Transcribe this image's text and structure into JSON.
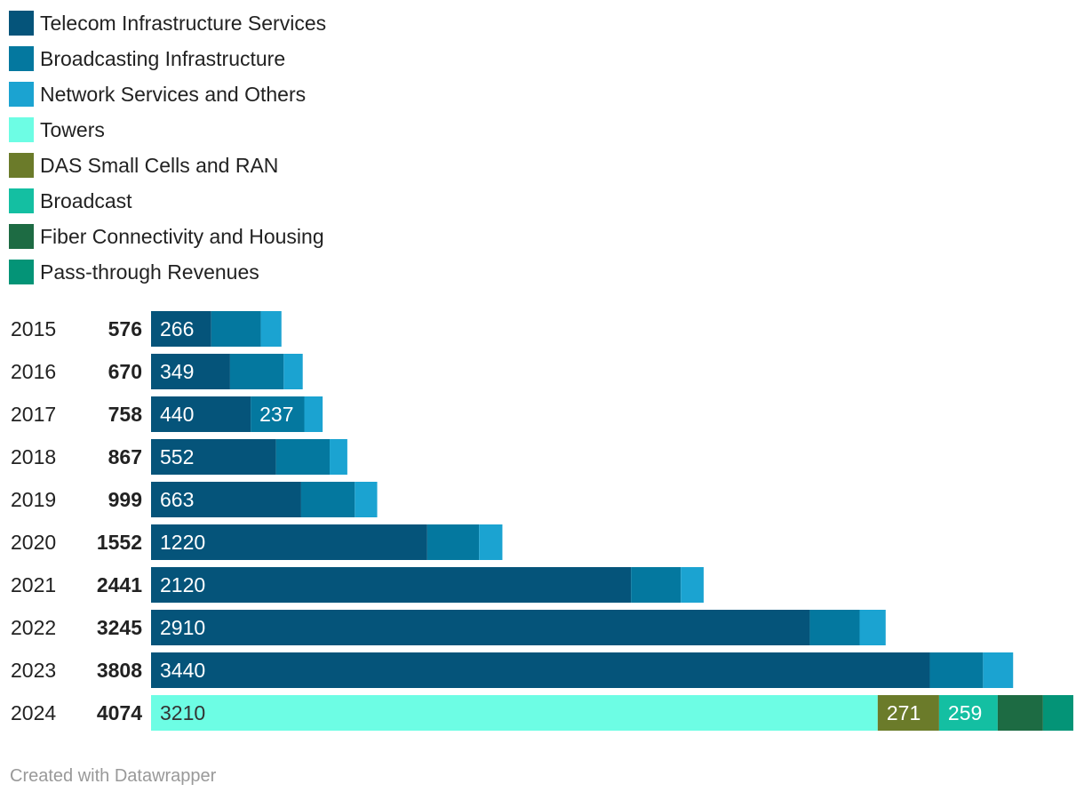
{
  "footer": "Created with Datawrapper",
  "chart_data": {
    "type": "bar",
    "orientation": "horizontal",
    "stacked": true,
    "legend": [
      {
        "name": "Telecom Infrastructure Services",
        "color": "#05547a"
      },
      {
        "name": "Broadcasting Infrastructure",
        "color": "#04789f"
      },
      {
        "name": "Network Services and Others",
        "color": "#1ba3d1"
      },
      {
        "name": "Towers",
        "color": "#6dfde4"
      },
      {
        "name": "DAS Small Cells and RAN",
        "color": "#6b7b2a"
      },
      {
        "name": "Broadcast",
        "color": "#14bfa2"
      },
      {
        "name": "Fiber Connectivity and Housing",
        "color": "#1d6b43"
      },
      {
        "name": "Pass-through Revenues",
        "color": "#049477"
      }
    ],
    "rows": [
      {
        "year": "2015",
        "total": "576",
        "segments": [
          {
            "series": 0,
            "value": 266,
            "label": "266"
          },
          {
            "series": 1,
            "value": 219,
            "label": ""
          },
          {
            "series": 2,
            "value": 91,
            "label": ""
          }
        ]
      },
      {
        "year": "2016",
        "total": "670",
        "segments": [
          {
            "series": 0,
            "value": 349,
            "label": "349"
          },
          {
            "series": 1,
            "value": 237,
            "label": ""
          },
          {
            "series": 2,
            "value": 84,
            "label": ""
          }
        ]
      },
      {
        "year": "2017",
        "total": "758",
        "segments": [
          {
            "series": 0,
            "value": 440,
            "label": "440"
          },
          {
            "series": 1,
            "value": 237,
            "label": "237"
          },
          {
            "series": 2,
            "value": 81,
            "label": ""
          }
        ]
      },
      {
        "year": "2018",
        "total": "867",
        "segments": [
          {
            "series": 0,
            "value": 552,
            "label": "552"
          },
          {
            "series": 1,
            "value": 237,
            "label": ""
          },
          {
            "series": 2,
            "value": 78,
            "label": ""
          }
        ]
      },
      {
        "year": "2019",
        "total": "999",
        "segments": [
          {
            "series": 0,
            "value": 663,
            "label": "663"
          },
          {
            "series": 1,
            "value": 237,
            "label": ""
          },
          {
            "series": 2,
            "value": 99,
            "label": ""
          }
        ]
      },
      {
        "year": "2020",
        "total": "1552",
        "segments": [
          {
            "series": 0,
            "value": 1220,
            "label": "1220"
          },
          {
            "series": 1,
            "value": 229,
            "label": ""
          },
          {
            "series": 2,
            "value": 103,
            "label": ""
          }
        ]
      },
      {
        "year": "2021",
        "total": "2441",
        "segments": [
          {
            "series": 0,
            "value": 2120,
            "label": "2120"
          },
          {
            "series": 1,
            "value": 220,
            "label": ""
          },
          {
            "series": 2,
            "value": 101,
            "label": ""
          }
        ]
      },
      {
        "year": "2022",
        "total": "3245",
        "segments": [
          {
            "series": 0,
            "value": 2910,
            "label": "2910"
          },
          {
            "series": 1,
            "value": 220,
            "label": ""
          },
          {
            "series": 2,
            "value": 115,
            "label": ""
          }
        ]
      },
      {
        "year": "2023",
        "total": "3808",
        "segments": [
          {
            "series": 0,
            "value": 3440,
            "label": "3440"
          },
          {
            "series": 1,
            "value": 235,
            "label": ""
          },
          {
            "series": 2,
            "value": 133,
            "label": ""
          }
        ]
      },
      {
        "year": "2024",
        "total": "4074",
        "segments": [
          {
            "series": 3,
            "value": 3210,
            "label": "3210"
          },
          {
            "series": 4,
            "value": 271,
            "label": "271"
          },
          {
            "series": 5,
            "value": 259,
            "label": "259"
          },
          {
            "series": 6,
            "value": 200,
            "label": ""
          },
          {
            "series": 7,
            "value": 134,
            "label": ""
          }
        ]
      }
    ],
    "xlim": [
      0,
      4074
    ],
    "grid": false,
    "legend_position": "top-left"
  }
}
